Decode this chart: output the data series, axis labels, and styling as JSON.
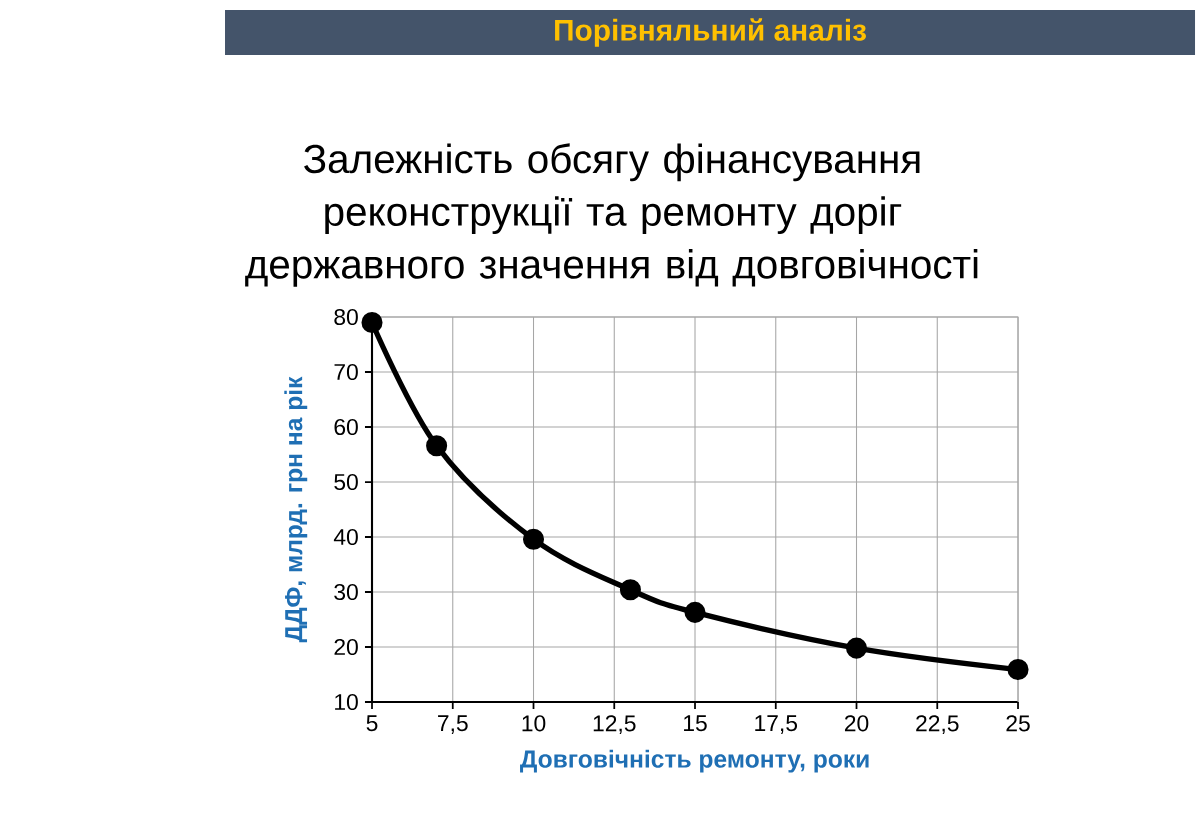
{
  "chart_data": {
    "type": "line",
    "title": "Залежність обсягу фінансування реконструкції та ремонту доріг державного значення від довговічності",
    "subtitle": "Порівняльний аналіз",
    "xlabel": "Довговічність ремонту, роки",
    "ylabel": "ДДФ, млрд. грн на рік",
    "x": [
      5,
      7,
      10,
      13,
      15,
      20,
      25
    ],
    "values": [
      79,
      56.6,
      39.6,
      30.4,
      26.3,
      19.8,
      15.9
    ],
    "color": "#000000",
    "marker": "circle",
    "grid": true,
    "xlim": [
      5,
      25
    ],
    "ylim": [
      10,
      80
    ],
    "xticks": [
      5,
      {
        "value": 7.5,
        "label": "7,5"
      },
      10,
      {
        "value": 12.5,
        "label": "12,5"
      },
      15,
      {
        "value": 17.5,
        "label": "17,5"
      },
      20,
      {
        "value": 22.5,
        "label": "22,5"
      },
      25
    ],
    "yticks": [
      10,
      20,
      30,
      40,
      50,
      60,
      70,
      80
    ]
  }
}
